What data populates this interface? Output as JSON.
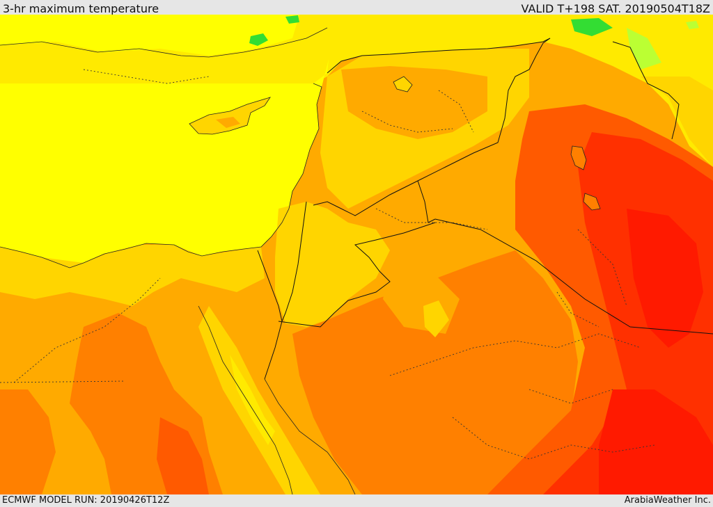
{
  "header": {
    "title": "3-hr maximum temperature",
    "valid": "VALID T+198 SAT. 20190504T18Z"
  },
  "footer": {
    "model_run": "ECMWF MODEL RUN: 20190426T12Z",
    "credit": "ArabiaWeather Inc."
  },
  "map": {
    "palette": {
      "sea": "#ffff00",
      "pale_yellow": "#ffea00",
      "gold": "#ffd500",
      "orange_light": "#ffaa00",
      "orange": "#ff8000",
      "orange_red": "#ff5a00",
      "red": "#ff3000",
      "deep_red": "#ff1a00",
      "green": "#33dd33",
      "yellow_green": "#bbff33"
    }
  }
}
